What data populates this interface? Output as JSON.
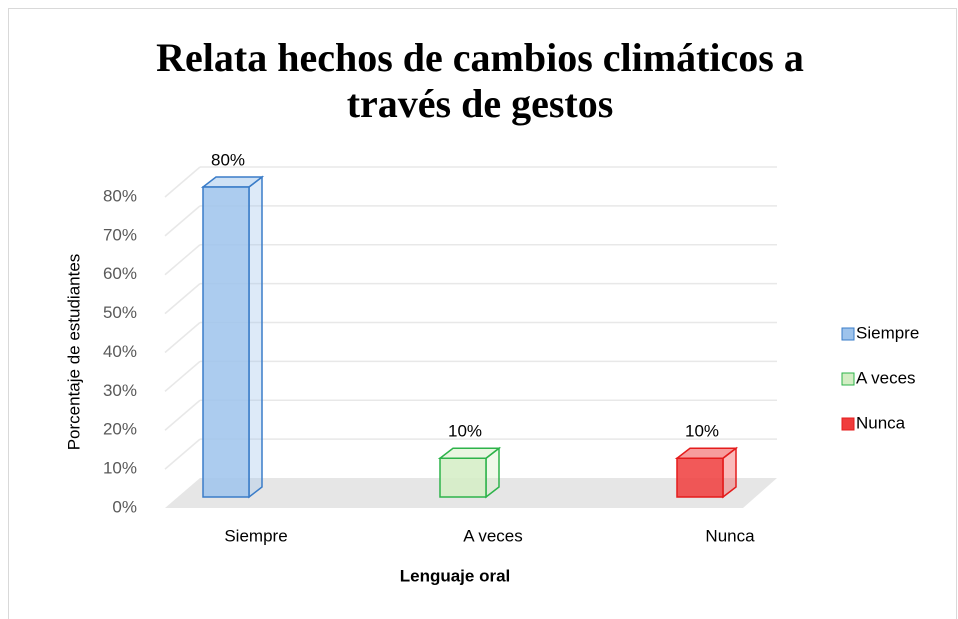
{
  "chart_data": {
    "type": "bar3d",
    "title": "Relata hechos de cambios climáticos a través de gestos",
    "title_lines": [
      "Relata hechos de cambios climáticos a",
      "través de gestos"
    ],
    "categories": [
      "Siempre",
      "A veces",
      "Nunca"
    ],
    "values": [
      80,
      10,
      10
    ],
    "value_labels": [
      "80%",
      "10%",
      "10%"
    ],
    "colors": [
      "#9dc3ec",
      "#d3edc4",
      "#f03c3c"
    ],
    "edge_colors": [
      "#3a7cc8",
      "#2db34a",
      "#e41c1c"
    ],
    "xlabel": "Lenguaje oral",
    "ylabel": "Porcentaje de estudiantes",
    "ylim": [
      0,
      80
    ],
    "yticks": [
      {
        "value": 0,
        "label": "0%"
      },
      {
        "value": 10,
        "label": "10%"
      },
      {
        "value": 20,
        "label": "20%"
      },
      {
        "value": 30,
        "label": "30%"
      },
      {
        "value": 40,
        "label": "40%"
      },
      {
        "value": 50,
        "label": "50%"
      },
      {
        "value": 60,
        "label": "60%"
      },
      {
        "value": 70,
        "label": "70%"
      },
      {
        "value": 80,
        "label": "80%"
      }
    ],
    "grid": true,
    "legend": "right"
  }
}
